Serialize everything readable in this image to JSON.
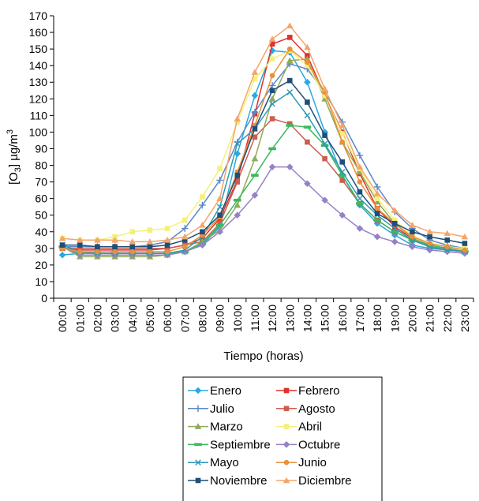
{
  "chart_data": {
    "type": "line",
    "title": "",
    "xlabel": "Tiempo (horas)",
    "ylabel_main": "[O",
    "ylabel_sub": "3",
    "ylabel_unit": "] µg/m",
    "ylabel_sup": "3",
    "ylim": [
      0,
      170
    ],
    "yticks": [
      0,
      10,
      20,
      30,
      40,
      50,
      60,
      70,
      80,
      90,
      100,
      110,
      120,
      130,
      140,
      150,
      160,
      170
    ],
    "categories": [
      "00:00",
      "01:00",
      "02:00",
      "03:00",
      "04:00",
      "05:00",
      "06:00",
      "07:00",
      "08:00",
      "09:00",
      "10:00",
      "11:00",
      "12:00",
      "13:00",
      "14:00",
      "15:00",
      "16:00",
      "17:00",
      "18:00",
      "19:00",
      "20:00",
      "21:00",
      "22:00",
      "23:00"
    ],
    "grid": false,
    "legend_position": "bottom",
    "series": [
      {
        "name": "Enero",
        "color": "#29a9e0",
        "marker": "diamond",
        "values": [
          26,
          27,
          27,
          27,
          27,
          27,
          27,
          28,
          32,
          43,
          87,
          122,
          149,
          148,
          130,
          100,
          74,
          56,
          45,
          38,
          32,
          30,
          29,
          28
        ]
      },
      {
        "name": "Febrero",
        "color": "#e0322d",
        "marker": "square",
        "values": [
          30,
          29,
          29,
          29,
          29,
          29,
          30,
          32,
          36,
          48,
          71,
          111,
          153,
          157,
          146,
          122,
          100,
          75,
          54,
          43,
          36,
          32,
          30,
          28
        ]
      },
      {
        "name": "Julio",
        "color": "#5b87c9",
        "marker": "plus",
        "values": [
          31,
          31,
          31,
          31,
          31,
          32,
          34,
          42,
          56,
          71,
          94,
          112,
          128,
          141,
          138,
          124,
          106,
          86,
          67,
          52,
          42,
          35,
          32,
          30
        ]
      },
      {
        "name": "Agosto",
        "color": "#cc5e50",
        "marker": "square",
        "values": [
          30,
          30,
          30,
          30,
          30,
          30,
          30,
          32,
          34,
          45,
          70,
          97,
          108,
          105,
          94,
          84,
          71,
          57,
          47,
          40,
          35,
          31,
          29,
          28
        ]
      },
      {
        "name": "Marzo",
        "color": "#8faa5c",
        "marker": "triangle",
        "values": [
          31,
          25,
          25,
          25,
          25,
          25,
          26,
          28,
          34,
          41,
          56,
          84,
          120,
          143,
          144,
          120,
          94,
          76,
          58,
          45,
          36,
          32,
          29,
          28
        ]
      },
      {
        "name": "Abril",
        "color": "#f5f07a",
        "marker": "square",
        "values": [
          36,
          35,
          35,
          37,
          40,
          41,
          42,
          47,
          61,
          78,
          106,
          132,
          144,
          149,
          140,
          122,
          99,
          78,
          60,
          47,
          38,
          33,
          31,
          30
        ]
      },
      {
        "name": "Septiembre",
        "color": "#3cb85e",
        "marker": "dash",
        "values": [
          31,
          27,
          27,
          27,
          27,
          27,
          27,
          28,
          33,
          44,
          59,
          74,
          90,
          104,
          103,
          92,
          74,
          57,
          47,
          40,
          35,
          32,
          30,
          28
        ]
      },
      {
        "name": "Octubre",
        "color": "#9681c7",
        "marker": "diamond",
        "values": [
          31,
          26,
          26,
          26,
          26,
          26,
          26,
          28,
          32,
          40,
          50,
          62,
          79,
          79,
          69,
          59,
          50,
          42,
          37,
          34,
          31,
          29,
          28,
          27
        ]
      },
      {
        "name": "Mayo",
        "color": "#2e9ab5",
        "marker": "x",
        "values": [
          32,
          28,
          27,
          27,
          27,
          27,
          27,
          29,
          37,
          55,
          93,
          102,
          117,
          124,
          110,
          93,
          76,
          60,
          50,
          42,
          35,
          31,
          29,
          28
        ]
      },
      {
        "name": "Junio",
        "color": "#e8913a",
        "marker": "circle",
        "values": [
          30,
          28,
          28,
          28,
          28,
          28,
          28,
          31,
          38,
          49,
          76,
          104,
          134,
          150,
          142,
          124,
          94,
          70,
          54,
          45,
          37,
          33,
          31,
          29
        ]
      },
      {
        "name": "Noviembre",
        "color": "#1f4e79",
        "marker": "square",
        "values": [
          32,
          32,
          31,
          31,
          31,
          31,
          32,
          35,
          40,
          50,
          74,
          102,
          125,
          131,
          118,
          98,
          82,
          64,
          51,
          45,
          40,
          37,
          35,
          33
        ]
      },
      {
        "name": "Diciembre",
        "color": "#f2a66b",
        "marker": "triangle",
        "values": [
          36,
          35,
          35,
          35,
          34,
          34,
          35,
          37,
          44,
          60,
          108,
          136,
          156,
          164,
          151,
          126,
          104,
          79,
          63,
          53,
          44,
          40,
          39,
          37
        ]
      }
    ]
  }
}
